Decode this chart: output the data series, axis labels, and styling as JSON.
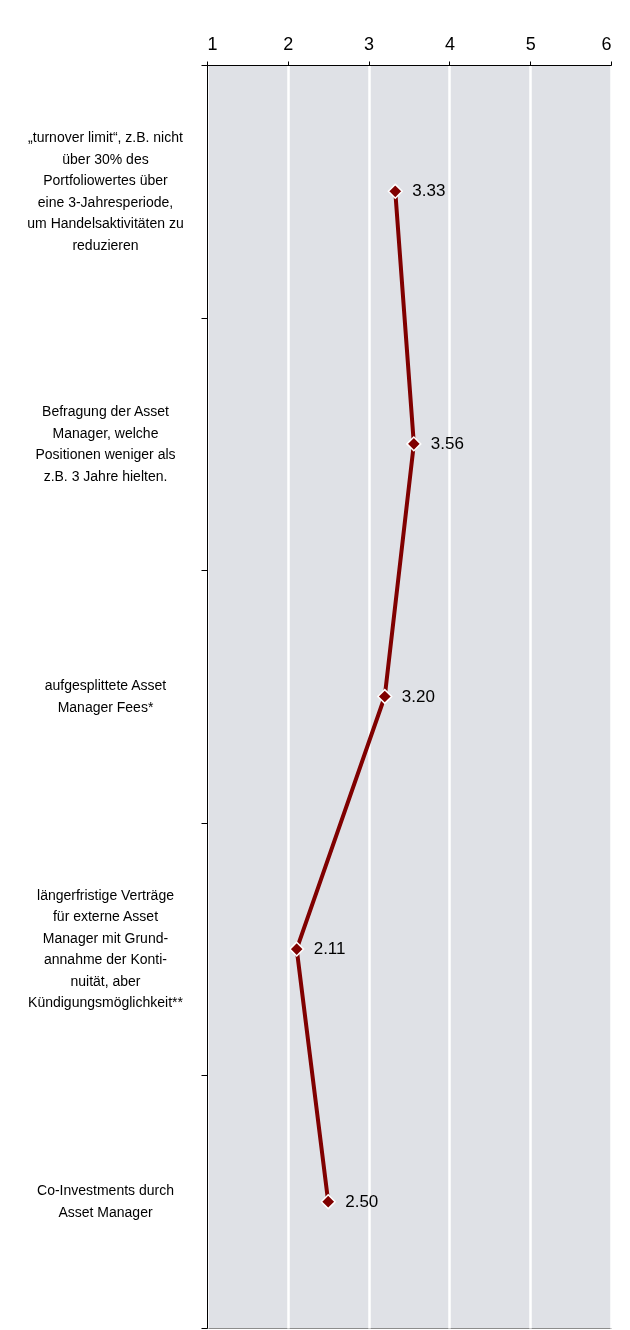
{
  "chart_data": {
    "type": "line",
    "orientation": "horizontal",
    "categories": [
      "„turnover limit“, z.B. nicht\nüber 30% des\nPortfoliowertes über\neine 3-Jahresperiode,\num Handelsaktivitäten zu\nreduzieren",
      "Befragung der Asset\nManager, welche\nPositionen weniger als\nz.B. 3 Jahre hielten.",
      "aufgesplittete Asset\nManager Fees*",
      "längerfristige Verträge\nfür externe Asset\nManager mit Grund-\nannahme der Konti-\nnuität, aber\nKündigungsmöglichkeit**",
      "Co-Investments durch\nAsset Manager"
    ],
    "series": [
      {
        "color": "#800000",
        "values": [
          3.33,
          3.56,
          3.2,
          2.11,
          2.5
        ],
        "value_labels": [
          "3.33",
          "3.56",
          "3.20",
          "2.11",
          "2.50"
        ]
      }
    ],
    "xlim": [
      1,
      6
    ],
    "xticks": [
      1,
      2,
      3,
      4,
      5,
      6
    ],
    "grid": "x",
    "marker": "diamond",
    "line_style": "solid"
  }
}
